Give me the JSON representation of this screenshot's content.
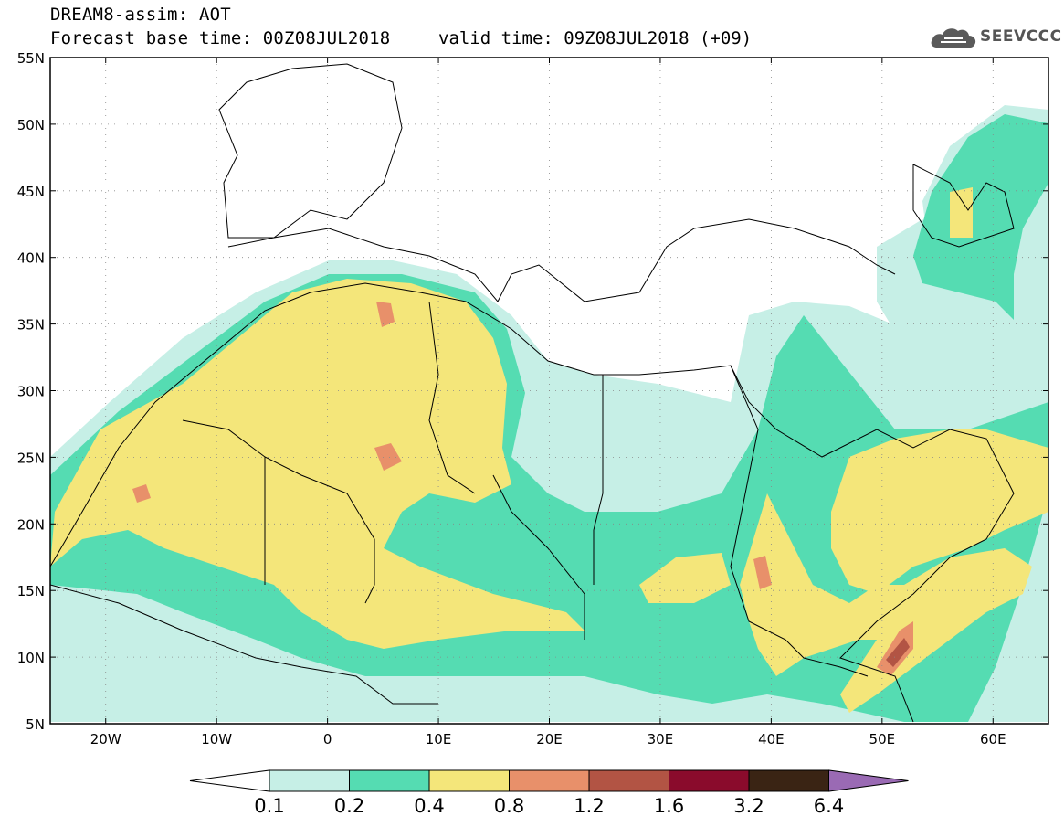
{
  "header": {
    "title": "DREAM8-assim: AOT",
    "base_time": "Forecast base time: 00Z08JUL2018",
    "valid_time": "valid time: 09Z08JUL2018 (+09)"
  },
  "logo": {
    "text": "SEEVCCC",
    "icon": "cloud-icon"
  },
  "map": {
    "lon_range": [
      -25,
      65
    ],
    "lat_range": [
      5,
      55
    ],
    "lat_labels": [
      "55N",
      "50N",
      "45N",
      "40N",
      "35N",
      "30N",
      "25N",
      "20N",
      "15N",
      "10N",
      "5N"
    ],
    "lon_labels": [
      "20W",
      "10W",
      "0",
      "10E",
      "20E",
      "30E",
      "40E",
      "50E",
      "60E"
    ]
  },
  "colorbar": {
    "labels": [
      "0.1",
      "0.2",
      "0.4",
      "0.8",
      "1.2",
      "1.6",
      "3.2",
      "6.4"
    ],
    "colors": [
      "#c6efe6",
      "#55dcb2",
      "#f4e67a",
      "#e8906a",
      "#b25444",
      "#8a0b2c",
      "#3a2414",
      "#9a6ab4"
    ]
  },
  "colors": {
    "c1": "#c6efe6",
    "c2": "#55dcb2",
    "c3": "#f4e67a",
    "c4": "#e8906a",
    "c5": "#b25444"
  }
}
